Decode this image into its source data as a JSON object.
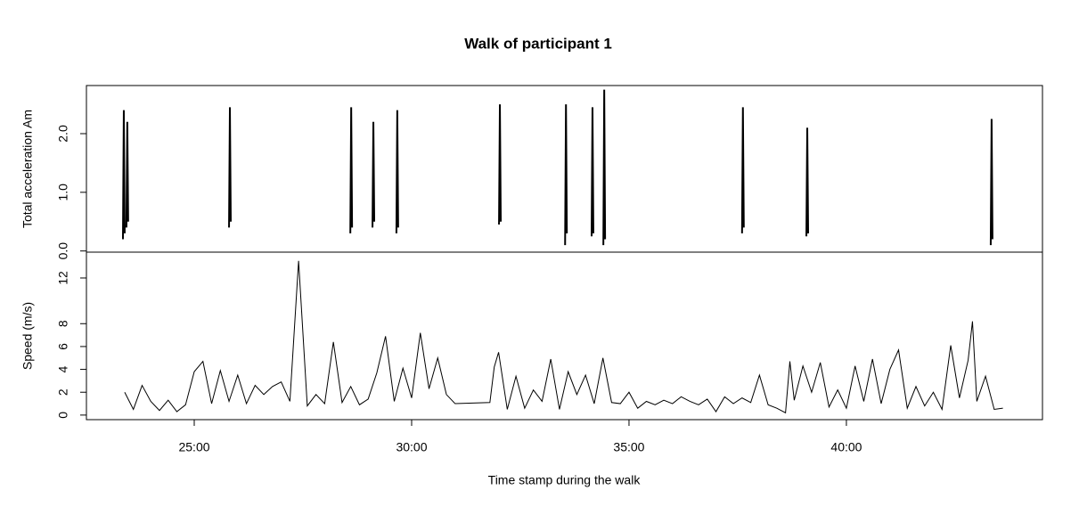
{
  "chart_data": [
    {
      "type": "line",
      "title": "Walk of participant 1",
      "ylabel": "Total acceleration Am",
      "color": "#000000",
      "xlim": [
        22.52,
        44.51
      ],
      "ylim": [
        -0.02,
        2.82
      ],
      "yticks": [
        {
          "value": 0,
          "label": "0.0"
        },
        {
          "value": 1,
          "label": "1.0"
        },
        {
          "value": 2,
          "label": "2.0"
        }
      ],
      "x": [
        23.36,
        23.38,
        23.4,
        null,
        23.44,
        23.46,
        23.48,
        null,
        25.8,
        25.82,
        25.84,
        null,
        28.59,
        28.61,
        28.63,
        null,
        29.1,
        29.12,
        29.14,
        null,
        29.65,
        29.67,
        29.69,
        null,
        32.01,
        32.03,
        32.05,
        null,
        33.53,
        33.55,
        33.57,
        null,
        34.14,
        34.16,
        34.18,
        null,
        34.41,
        34.43,
        34.45,
        null,
        37.6,
        37.62,
        37.64,
        null,
        39.08,
        39.1,
        39.12,
        null,
        43.32,
        43.34,
        43.36
      ],
      "values": [
        0.2,
        2.4,
        0.3,
        null,
        0.4,
        2.2,
        0.5,
        null,
        0.4,
        2.45,
        0.5,
        null,
        0.3,
        2.45,
        0.4,
        null,
        0.4,
        2.2,
        0.5,
        null,
        0.3,
        2.4,
        0.4,
        null,
        0.45,
        2.5,
        0.5,
        null,
        0.1,
        2.5,
        0.3,
        null,
        0.25,
        2.45,
        0.3,
        null,
        0.1,
        2.75,
        0.2,
        null,
        0.3,
        2.45,
        0.4,
        null,
        0.25,
        2.1,
        0.3,
        null,
        0.1,
        2.25,
        0.2
      ]
    },
    {
      "type": "line",
      "xlabel": "Time stamp during the walk",
      "ylabel": "Speed (m/s)",
      "color": "#000000",
      "xlim": [
        22.52,
        44.51
      ],
      "ylim": [
        -0.4,
        14.26
      ],
      "xticks": [
        {
          "value": 25,
          "label": "25:00"
        },
        {
          "value": 30,
          "label": "30:00"
        },
        {
          "value": 35,
          "label": "35:00"
        },
        {
          "value": 40,
          "label": "40:00"
        }
      ],
      "yticks": [
        0,
        2,
        4,
        6,
        8,
        12
      ],
      "x": [
        23.4,
        23.6,
        23.8,
        24.0,
        24.2,
        24.4,
        24.6,
        24.8,
        25.0,
        25.2,
        25.4,
        25.6,
        25.8,
        26.0,
        26.2,
        26.4,
        26.6,
        26.8,
        27.0,
        27.2,
        27.4,
        27.6,
        27.8,
        28.0,
        28.2,
        28.4,
        28.6,
        28.8,
        29.0,
        29.2,
        29.4,
        29.6,
        29.8,
        30.0,
        30.2,
        30.4,
        30.6,
        30.8,
        31.0,
        31.8,
        31.9,
        32.0,
        32.2,
        32.4,
        32.6,
        32.8,
        33.0,
        33.2,
        33.4,
        33.6,
        33.8,
        34.0,
        34.2,
        34.4,
        34.6,
        34.8,
        35.0,
        35.2,
        35.4,
        35.6,
        35.8,
        36.0,
        36.2,
        36.4,
        36.6,
        36.8,
        37.0,
        37.2,
        37.4,
        37.6,
        37.8,
        38.0,
        38.2,
        38.4,
        38.6,
        38.7,
        38.8,
        39.0,
        39.2,
        39.4,
        39.6,
        39.8,
        40.0,
        40.2,
        40.4,
        40.6,
        40.8,
        41.0,
        41.2,
        41.4,
        41.6,
        41.8,
        42.0,
        42.2,
        42.4,
        42.6,
        42.8,
        42.9,
        43.0,
        43.2,
        43.4,
        43.6
      ],
      "values": [
        2.0,
        0.5,
        2.6,
        1.2,
        0.4,
        1.3,
        0.3,
        0.9,
        3.8,
        4.7,
        1.0,
        3.9,
        1.2,
        3.5,
        1.0,
        2.6,
        1.8,
        2.5,
        2.9,
        1.2,
        13.5,
        0.8,
        1.8,
        1.0,
        6.4,
        1.1,
        2.5,
        0.9,
        1.4,
        3.7,
        6.9,
        1.2,
        4.1,
        1.5,
        7.2,
        2.3,
        5.0,
        1.8,
        1.0,
        1.1,
        4.2,
        5.5,
        0.5,
        3.4,
        0.6,
        2.2,
        1.2,
        4.9,
        0.5,
        3.8,
        1.8,
        3.5,
        1.0,
        5.0,
        1.1,
        1.0,
        2.0,
        0.6,
        1.2,
        0.9,
        1.3,
        1.0,
        1.6,
        1.2,
        0.9,
        1.4,
        0.3,
        1.6,
        1.0,
        1.5,
        1.1,
        3.5,
        0.9,
        0.6,
        0.2,
        4.7,
        1.3,
        4.3,
        2.0,
        4.6,
        0.7,
        2.2,
        0.6,
        4.3,
        1.2,
        4.9,
        1.0,
        4.0,
        5.7,
        0.6,
        2.5,
        0.8,
        2.0,
        0.5,
        6.1,
        1.5,
        4.8,
        8.2,
        1.2,
        3.4,
        0.5,
        0.6
      ]
    }
  ]
}
